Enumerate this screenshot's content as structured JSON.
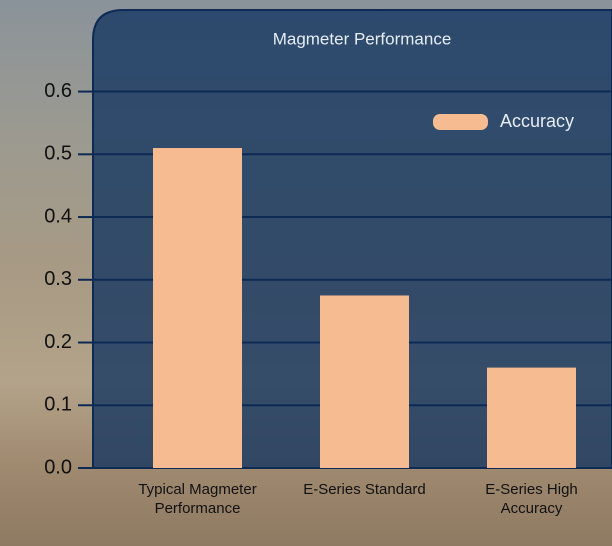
{
  "chart_data": {
    "type": "bar",
    "title": "Magmeter Performance",
    "categories": [
      "Typical Magmeter Performance",
      "E-Series Standard",
      "E-Series High Accuracy"
    ],
    "series": [
      {
        "name": "Accuracy",
        "color": "#f7bb92",
        "values": [
          0.51,
          0.275,
          0.16
        ]
      }
    ],
    "ylim": [
      0,
      0.73
    ],
    "yticks": [
      {
        "value": 0,
        "label": "0.0"
      },
      0.1,
      0.2,
      0.3,
      0.4,
      0.5,
      0.6
    ],
    "grid": true,
    "legend": "upper right"
  }
}
